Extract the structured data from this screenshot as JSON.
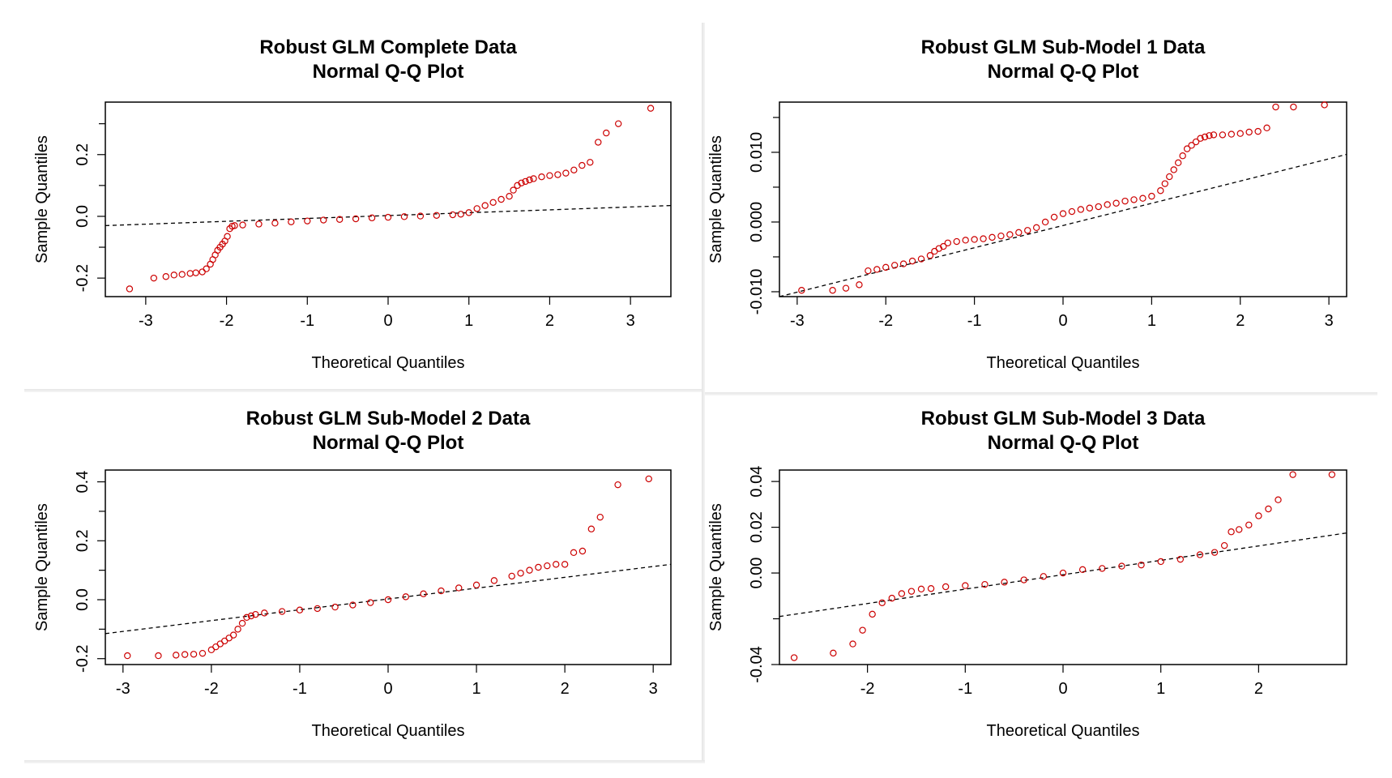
{
  "colors": {
    "points": "#cc0000",
    "line": "#000000",
    "frame": "#000000"
  },
  "chart_data": [
    {
      "type": "scatter",
      "title": "Robust GLM Complete Data",
      "subtitle": "Normal Q-Q Plot",
      "xlabel": "Theoretical Quantiles",
      "ylabel": "Sample Quantiles",
      "xlim": [
        -3.5,
        3.5
      ],
      "ylim": [
        -0.26,
        0.37
      ],
      "xticks": [
        -3,
        -2,
        -1,
        0,
        1,
        2,
        3
      ],
      "yticks": [
        -0.2,
        0.0,
        0.2
      ],
      "ytick_labels": [
        "-0.2",
        "0.0",
        "0.2"
      ],
      "ref_line": {
        "x": [
          -3.5,
          3.5
        ],
        "y": [
          -0.03,
          0.035
        ]
      },
      "series": [
        {
          "style": "open-circle",
          "x": [
            -3.2,
            -2.9,
            -2.75,
            -2.65,
            -2.55,
            -2.45,
            -2.38,
            -2.3,
            -2.25,
            -2.2,
            -2.17,
            -2.14,
            -2.11,
            -2.08,
            -2.05,
            -2.02,
            -1.99,
            -1.96,
            -1.93,
            -1.9,
            -1.8,
            -1.6,
            -1.4,
            -1.2,
            -1.0,
            -0.8,
            -0.6,
            -0.4,
            -0.2,
            0.0,
            0.2,
            0.4,
            0.6,
            0.8,
            0.9,
            1.0,
            1.1,
            1.2,
            1.3,
            1.4,
            1.5,
            1.55,
            1.6,
            1.65,
            1.7,
            1.75,
            1.8,
            1.9,
            2.0,
            2.1,
            2.2,
            2.3,
            2.4,
            2.5,
            2.6,
            2.7,
            2.85,
            3.25
          ],
          "y": [
            -0.235,
            -0.2,
            -0.195,
            -0.19,
            -0.188,
            -0.185,
            -0.183,
            -0.18,
            -0.17,
            -0.155,
            -0.14,
            -0.125,
            -0.11,
            -0.1,
            -0.09,
            -0.08,
            -0.065,
            -0.04,
            -0.032,
            -0.03,
            -0.028,
            -0.025,
            -0.022,
            -0.018,
            -0.015,
            -0.012,
            -0.01,
            -0.008,
            -0.005,
            -0.003,
            -0.001,
            0.001,
            0.003,
            0.005,
            0.007,
            0.012,
            0.025,
            0.035,
            0.045,
            0.055,
            0.065,
            0.085,
            0.1,
            0.108,
            0.113,
            0.118,
            0.122,
            0.128,
            0.132,
            0.135,
            0.14,
            0.15,
            0.165,
            0.175,
            0.24,
            0.27,
            0.3,
            0.35
          ]
        }
      ]
    },
    {
      "type": "scatter",
      "title": "Robust GLM Sub-Model 1 Data",
      "subtitle": "Normal Q-Q Plot",
      "xlabel": "Theoretical Quantiles",
      "ylabel": "Sample Quantiles",
      "xlim": [
        -3.2,
        3.2
      ],
      "ylim": [
        -0.0107,
        0.0172
      ],
      "xticks": [
        -3,
        -2,
        -1,
        0,
        1,
        2,
        3
      ],
      "yticks": [
        -0.01,
        0.0,
        0.01
      ],
      "ytick_labels": [
        "-0.010",
        "0.000",
        "0.010"
      ],
      "ref_line": {
        "x": [
          -3.2,
          3.2
        ],
        "y": [
          -0.0107,
          0.0097
        ]
      },
      "series": [
        {
          "style": "open-circle",
          "x": [
            -2.95,
            -2.6,
            -2.45,
            -2.3,
            -2.2,
            -2.1,
            -2.0,
            -1.9,
            -1.8,
            -1.7,
            -1.6,
            -1.5,
            -1.45,
            -1.4,
            -1.35,
            -1.3,
            -1.2,
            -1.1,
            -1.0,
            -0.9,
            -0.8,
            -0.7,
            -0.6,
            -0.5,
            -0.4,
            -0.3,
            -0.2,
            -0.1,
            0.0,
            0.1,
            0.2,
            0.3,
            0.4,
            0.5,
            0.6,
            0.7,
            0.8,
            0.9,
            1.0,
            1.1,
            1.15,
            1.2,
            1.25,
            1.3,
            1.35,
            1.4,
            1.45,
            1.5,
            1.55,
            1.6,
            1.65,
            1.7,
            1.8,
            1.9,
            2.0,
            2.1,
            2.2,
            2.3,
            2.4,
            2.6,
            2.95
          ],
          "y": [
            -0.0098,
            -0.0098,
            -0.0095,
            -0.009,
            -0.007,
            -0.0068,
            -0.0065,
            -0.0062,
            -0.006,
            -0.0056,
            -0.0053,
            -0.0048,
            -0.0042,
            -0.0038,
            -0.0035,
            -0.003,
            -0.0028,
            -0.0026,
            -0.0025,
            -0.0024,
            -0.0022,
            -0.002,
            -0.0018,
            -0.0015,
            -0.0012,
            -0.0008,
            0.0,
            0.0007,
            0.0012,
            0.0015,
            0.0018,
            0.002,
            0.0022,
            0.0025,
            0.0027,
            0.003,
            0.0032,
            0.0034,
            0.0037,
            0.0045,
            0.0055,
            0.0065,
            0.0075,
            0.0085,
            0.0095,
            0.0105,
            0.011,
            0.0115,
            0.012,
            0.0122,
            0.0124,
            0.0125,
            0.0125,
            0.0126,
            0.0127,
            0.0129,
            0.013,
            0.0135,
            0.0165,
            0.0165,
            0.0168
          ]
        }
      ]
    },
    {
      "type": "scatter",
      "title": "Robust GLM Sub-Model 2 Data",
      "subtitle": "Normal Q-Q Plot",
      "xlabel": "Theoretical Quantiles",
      "ylabel": "Sample Quantiles",
      "xlim": [
        -3.2,
        3.2
      ],
      "ylim": [
        -0.22,
        0.44
      ],
      "xticks": [
        -3,
        -2,
        -1,
        0,
        1,
        2,
        3
      ],
      "yticks": [
        -0.2,
        0.0,
        0.2,
        0.4
      ],
      "ytick_labels": [
        "-0.2",
        "0.0",
        "0.2",
        "0.4"
      ],
      "ref_line": {
        "x": [
          -3.2,
          3.2
        ],
        "y": [
          -0.115,
          0.12
        ]
      },
      "series": [
        {
          "style": "open-circle",
          "x": [
            -2.95,
            -2.6,
            -2.4,
            -2.3,
            -2.2,
            -2.1,
            -2.0,
            -1.95,
            -1.9,
            -1.85,
            -1.8,
            -1.75,
            -1.7,
            -1.65,
            -1.6,
            -1.55,
            -1.5,
            -1.4,
            -1.2,
            -1.0,
            -0.8,
            -0.6,
            -0.4,
            -0.2,
            0.0,
            0.2,
            0.4,
            0.6,
            0.8,
            1.0,
            1.2,
            1.4,
            1.5,
            1.6,
            1.7,
            1.8,
            1.9,
            2.0,
            2.1,
            2.2,
            2.3,
            2.4,
            2.6,
            2.95
          ],
          "y": [
            -0.19,
            -0.19,
            -0.188,
            -0.186,
            -0.185,
            -0.182,
            -0.17,
            -0.16,
            -0.15,
            -0.14,
            -0.13,
            -0.12,
            -0.1,
            -0.08,
            -0.06,
            -0.055,
            -0.05,
            -0.045,
            -0.04,
            -0.035,
            -0.03,
            -0.025,
            -0.018,
            -0.01,
            0.0,
            0.01,
            0.02,
            0.03,
            0.04,
            0.05,
            0.065,
            0.08,
            0.09,
            0.1,
            0.11,
            0.115,
            0.12,
            0.12,
            0.16,
            0.165,
            0.24,
            0.28,
            0.39,
            0.41
          ]
        }
      ]
    },
    {
      "type": "scatter",
      "title": "Robust GLM Sub-Model 3 Data",
      "subtitle": "Normal Q-Q Plot",
      "xlabel": "Theoretical Quantiles",
      "ylabel": "Sample Quantiles",
      "xlim": [
        -2.9,
        2.9
      ],
      "ylim": [
        -0.04,
        0.045
      ],
      "xticks": [
        -2,
        -1,
        0,
        1,
        2
      ],
      "yticks": [
        -0.04,
        0.0,
        0.02,
        0.04
      ],
      "ytick_labels": [
        "-0.04",
        "0.00",
        "0.02",
        "0.04"
      ],
      "ref_line": {
        "x": [
          -2.9,
          2.9
        ],
        "y": [
          -0.019,
          0.0175
        ]
      },
      "series": [
        {
          "style": "open-circle",
          "x": [
            -2.75,
            -2.35,
            -2.15,
            -2.05,
            -1.95,
            -1.85,
            -1.75,
            -1.65,
            -1.55,
            -1.45,
            -1.35,
            -1.2,
            -1.0,
            -0.8,
            -0.6,
            -0.4,
            -0.2,
            0.0,
            0.2,
            0.4,
            0.6,
            0.8,
            1.0,
            1.2,
            1.4,
            1.55,
            1.65,
            1.72,
            1.8,
            1.9,
            2.0,
            2.1,
            2.2,
            2.35,
            2.75
          ],
          "y": [
            -0.037,
            -0.035,
            -0.031,
            -0.025,
            -0.018,
            -0.013,
            -0.011,
            -0.009,
            -0.008,
            -0.007,
            -0.0068,
            -0.006,
            -0.0055,
            -0.005,
            -0.004,
            -0.003,
            -0.0015,
            0.0,
            0.0015,
            0.002,
            0.003,
            0.0035,
            0.005,
            0.006,
            0.008,
            0.009,
            0.012,
            0.018,
            0.019,
            0.021,
            0.025,
            0.028,
            0.032,
            0.043,
            0.043
          ]
        }
      ]
    }
  ]
}
